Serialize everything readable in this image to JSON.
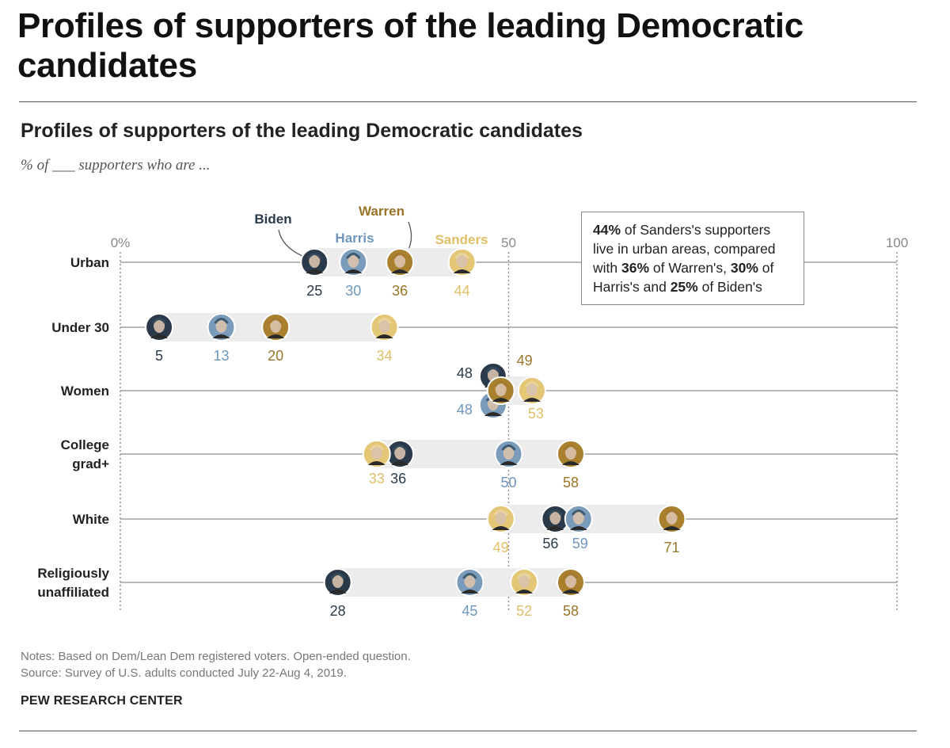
{
  "page_title": "Profiles of supporters of the leading Democratic candidates",
  "chart_data": {
    "type": "dot",
    "title": "Profiles of supporters of the leading Democratic candidates",
    "subtitle": "% of ___ supporters who are ...",
    "xlim": [
      0,
      100
    ],
    "ticks": [
      "0%",
      "50",
      "100"
    ],
    "tick_values": [
      0,
      50,
      100
    ],
    "series": [
      {
        "name": "Biden",
        "color": "#2b3a4a",
        "label_color": "#2b3a4a",
        "face": "#35495c",
        "values": [
          25,
          5,
          48,
          36,
          56,
          28
        ]
      },
      {
        "name": "Harris",
        "color": "#7a9cba",
        "label_color": "#6f97bd",
        "face": "#3e5a72",
        "values": [
          30,
          13,
          48,
          50,
          59,
          45
        ]
      },
      {
        "name": "Warren",
        "color": "#a8802e",
        "label_color": "#9a7428",
        "face": "#a37a2e",
        "values": [
          36,
          20,
          49,
          58,
          71,
          58
        ]
      },
      {
        "name": "Sanders",
        "color": "#e3c777",
        "label_color": "#e0bf66",
        "face": "#e9d49a",
        "values": [
          44,
          34,
          53,
          33,
          49,
          52
        ]
      }
    ],
    "categories": [
      "Urban",
      "Under 30",
      "Women",
      "College grad+",
      "White",
      "Religiously unaffiliated"
    ],
    "category_lines": [
      [
        "Urban"
      ],
      [
        "Under 30"
      ],
      [
        "Women"
      ],
      [
        "College",
        "grad+"
      ],
      [
        "White"
      ],
      [
        "Religiously",
        "unaffiliated"
      ]
    ]
  },
  "callout": {
    "p1": "44%",
    "t1": " of Sanders's supporters live in urban areas, compared with ",
    "p2": "36%",
    "t2": " of Warren's, ",
    "p3": "30%",
    "t3": " of Harris's and ",
    "p4": "25%",
    "t4": " of Biden's"
  },
  "notes": "Notes: Based on Dem/Lean Dem registered voters. Open-ended question.",
  "source": "Source: Survey of U.S. adults conducted July 22-Aug 4, 2019.",
  "brand": "PEW RESEARCH CENTER"
}
